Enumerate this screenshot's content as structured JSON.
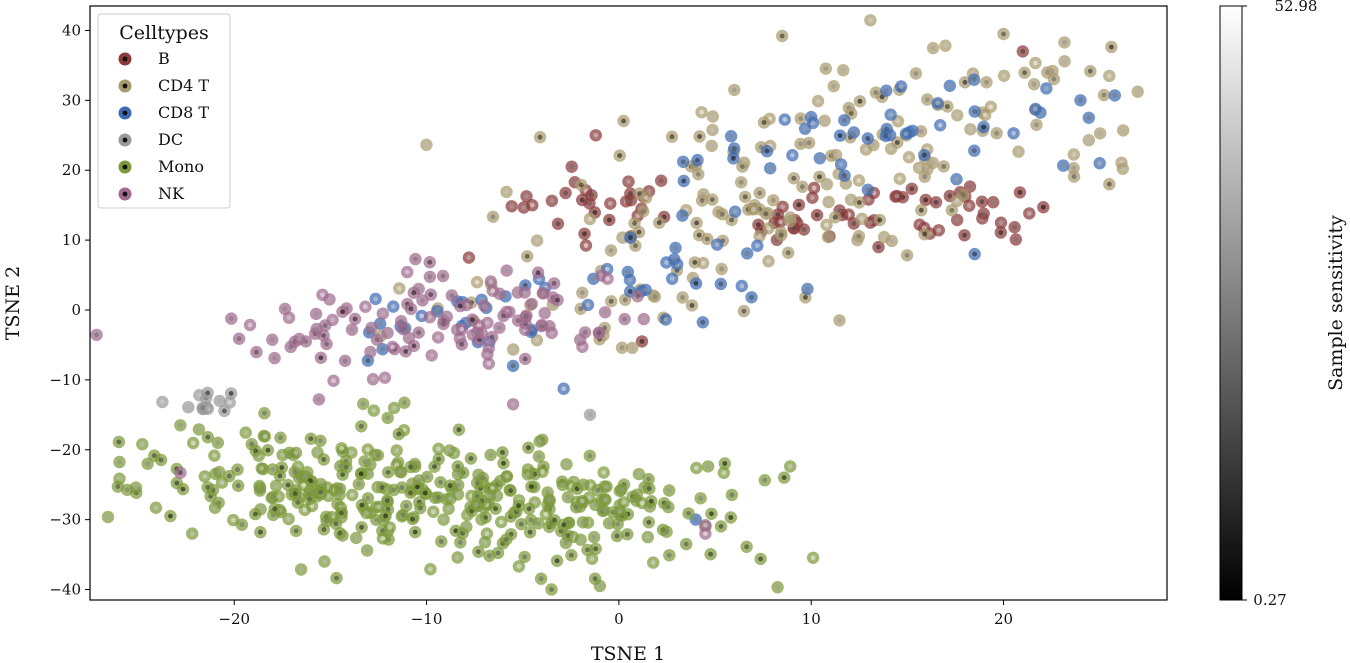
{
  "chart_data": {
    "type": "scatter",
    "xlabel": "TSNE 1",
    "ylabel": "TSNE 2",
    "xlim": [
      -27.5,
      28.5
    ],
    "ylim": [
      -41.5,
      43.5
    ],
    "xticks": [
      -20,
      -10,
      0,
      10,
      20
    ],
    "yticks": [
      -40,
      -30,
      -20,
      -10,
      0,
      10,
      20,
      30,
      40
    ],
    "xtick_labels": [
      "−20",
      "−10",
      "0",
      "10",
      "20"
    ],
    "ytick_labels": [
      "−40",
      "−30",
      "−20",
      "−10",
      "0",
      "10",
      "20",
      "30",
      "40"
    ],
    "legend": {
      "title": "Celltypes",
      "placement": "upper-left",
      "entries": [
        {
          "name": "B",
          "color": "#8b3a3a"
        },
        {
          "name": "CD4 T",
          "color": "#a99a6e"
        },
        {
          "name": "CD8 T",
          "color": "#3d6bb3"
        },
        {
          "name": "DC",
          "color": "#9a9a9a"
        },
        {
          "name": "Mono",
          "color": "#7c9a3a"
        },
        {
          "name": "NK",
          "color": "#a06a8e"
        }
      ]
    },
    "colorbar": {
      "label": "Sample sensitivity",
      "min": 0.27,
      "max": 52.98,
      "min_label": "0.27",
      "max_label": "52.98",
      "colormap": "greys_reversed"
    },
    "clusters": [
      {
        "name": "B",
        "color": "#8b3a3a",
        "n": 80,
        "centers": [
          [
            -1,
            15
          ],
          [
            11,
            13
          ],
          [
            18,
            14
          ]
        ],
        "spread": [
          2.3,
          2.2
        ],
        "outliers": [
          [
            -1.2,
            25
          ],
          [
            13.5,
            9
          ],
          [
            1.2,
            -4.5
          ],
          [
            21,
            37
          ],
          [
            -4.5,
            15
          ],
          [
            -7.8,
            7.5
          ],
          [
            2.2,
            18.5
          ]
        ]
      },
      {
        "name": "CD4 T",
        "color": "#a99a6e",
        "n": 200,
        "centers": [
          [
            15,
            25
          ],
          [
            5,
            18
          ],
          [
            20,
            30
          ],
          [
            -2,
            4
          ],
          [
            9,
            12
          ]
        ],
        "spread": [
          4.5,
          4.5
        ],
        "outliers": [
          [
            20,
            39.5
          ],
          [
            25.5,
            33.5
          ],
          [
            25.5,
            18
          ],
          [
            4.3,
            28.3
          ],
          [
            6,
            31.5
          ],
          [
            26.2,
            20.2
          ],
          [
            9.7,
            1.8
          ]
        ]
      },
      {
        "name": "CD8 T",
        "color": "#3d6bb3",
        "n": 95,
        "centers": [
          [
            -10,
            -2
          ],
          [
            2,
            6
          ],
          [
            10,
            22
          ],
          [
            16,
            28
          ]
        ],
        "spread": [
          4,
          3.5
        ],
        "outliers": [
          [
            18.5,
            8
          ],
          [
            25,
            21
          ],
          [
            3.3,
            13.5
          ],
          [
            9.8,
            3
          ],
          [
            24,
            30
          ],
          [
            4,
            -30
          ],
          [
            -5.5,
            -8
          ]
        ]
      },
      {
        "name": "DC",
        "color": "#9a9a9a",
        "n": 14,
        "centers": [
          [
            -21.5,
            -13
          ]
        ],
        "spread": [
          1.0,
          0.8
        ],
        "outliers": [
          [
            -1.5,
            -15
          ]
        ]
      },
      {
        "name": "Mono",
        "color": "#7c9a3a",
        "n": 400,
        "centers": [
          [
            -13,
            -26
          ],
          [
            -7,
            -27
          ],
          [
            -17,
            -24
          ],
          [
            -2,
            -29
          ]
        ],
        "spread": [
          4.5,
          4.5
        ],
        "outliers": [
          [
            -24.5,
            -22
          ],
          [
            -22.8,
            -16.5
          ],
          [
            -21,
            -28.3
          ],
          [
            3.5,
            -33.5
          ],
          [
            4.5,
            -31
          ]
        ]
      },
      {
        "name": "NK",
        "color": "#a06a8e",
        "n": 120,
        "centers": [
          [
            -14,
            -4
          ],
          [
            -8,
            -2
          ],
          [
            -5,
            1
          ]
        ],
        "spread": [
          3.5,
          2.8
        ],
        "outliers": [
          [
            -22.8,
            -23.3
          ],
          [
            -5.5,
            -13.5
          ],
          [
            4.5,
            -30.8
          ],
          [
            4.5,
            -32
          ],
          [
            0.3,
            -1.3
          ]
        ]
      }
    ]
  }
}
